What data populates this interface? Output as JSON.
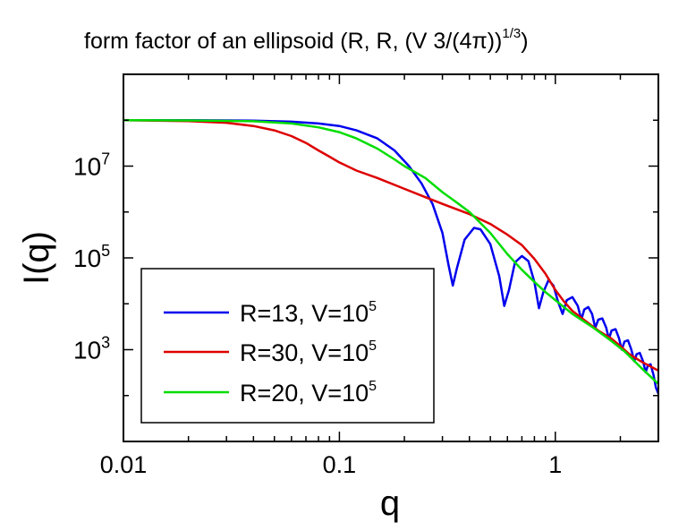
{
  "chart_data": {
    "type": "line",
    "title_main": "form factor of an ellipsoid (R, R, (V 3/(4π))",
    "title_sup": "1/3",
    "title_end": ")",
    "xlabel": "q",
    "ylabel": "I(q)",
    "xscale": "log",
    "yscale": "log",
    "xlim": [
      0.01,
      3
    ],
    "ylim": [
      10,
      1000000000
    ],
    "xticks": [
      {
        "value": 0.01,
        "label": "0.01"
      },
      {
        "value": 0.1,
        "label": "0.1"
      },
      {
        "value": 1,
        "label": "1"
      }
    ],
    "yticks": [
      {
        "value": 1000,
        "base": "10",
        "exp": "3"
      },
      {
        "value": 100000,
        "base": "10",
        "exp": "5"
      },
      {
        "value": 10000000,
        "base": "10",
        "exp": "7"
      }
    ],
    "grid": false,
    "legend_position": "bottom-left",
    "series": [
      {
        "name_main": "R=13, V=10",
        "name_sup": "5",
        "color": "#0000ee",
        "points": [
          [
            0.01,
            100000000
          ],
          [
            0.02,
            100000000
          ],
          [
            0.04,
            98000000
          ],
          [
            0.06,
            93000000
          ],
          [
            0.08,
            85000000
          ],
          [
            0.1,
            75000000
          ],
          [
            0.12,
            60000000
          ],
          [
            0.15,
            40000000
          ],
          [
            0.18,
            22000000
          ],
          [
            0.21,
            10000000
          ],
          [
            0.24,
            4200000
          ],
          [
            0.27,
            1500000
          ],
          [
            0.3,
            350000
          ],
          [
            0.32,
            70000
          ],
          [
            0.335,
            25000
          ],
          [
            0.35,
            60000
          ],
          [
            0.38,
            250000
          ],
          [
            0.42,
            450000
          ],
          [
            0.45,
            420000
          ],
          [
            0.5,
            200000
          ],
          [
            0.55,
            40000
          ],
          [
            0.58,
            9000
          ],
          [
            0.61,
            20000
          ],
          [
            0.65,
            80000
          ],
          [
            0.7,
            110000
          ],
          [
            0.75,
            85000
          ],
          [
            0.8,
            30000
          ],
          [
            0.84,
            8000
          ],
          [
            0.88,
            18000
          ],
          [
            0.93,
            33000
          ],
          [
            0.98,
            25000
          ],
          [
            1.03,
            11000
          ],
          [
            1.08,
            6000
          ],
          [
            1.13,
            12000
          ],
          [
            1.2,
            14000
          ],
          [
            1.27,
            9000
          ],
          [
            1.32,
            4500
          ],
          [
            1.36,
            7500
          ],
          [
            1.42,
            8500
          ],
          [
            1.48,
            6000
          ],
          [
            1.53,
            3000
          ],
          [
            1.58,
            4500
          ],
          [
            1.65,
            4800
          ],
          [
            1.72,
            3000
          ],
          [
            1.77,
            1700
          ],
          [
            1.82,
            2600
          ],
          [
            1.9,
            2800
          ],
          [
            1.97,
            1800
          ],
          [
            2.03,
            1000
          ],
          [
            2.09,
            1500
          ],
          [
            2.17,
            1600
          ],
          [
            2.25,
            1000
          ],
          [
            2.32,
            560
          ],
          [
            2.38,
            800
          ],
          [
            2.46,
            850
          ],
          [
            2.55,
            550
          ],
          [
            2.62,
            320
          ],
          [
            2.68,
            450
          ],
          [
            2.76,
            480
          ],
          [
            2.85,
            280
          ],
          [
            2.92,
            150
          ],
          [
            3,
            110
          ]
        ]
      },
      {
        "name_main": "R=30, V=10",
        "name_sup": "5",
        "color": "#dd0000",
        "points": [
          [
            0.01,
            100000000
          ],
          [
            0.02,
            96000000
          ],
          [
            0.03,
            88000000
          ],
          [
            0.04,
            75000000
          ],
          [
            0.05,
            60000000
          ],
          [
            0.06,
            45000000
          ],
          [
            0.07,
            32000000
          ],
          [
            0.08,
            22000000
          ],
          [
            0.09,
            16000000
          ],
          [
            0.1,
            12000000
          ],
          [
            0.12,
            8000000
          ],
          [
            0.15,
            5500000
          ],
          [
            0.2,
            3200000
          ],
          [
            0.25,
            2100000
          ],
          [
            0.3,
            1500000
          ],
          [
            0.4,
            900000
          ],
          [
            0.5,
            550000
          ],
          [
            0.6,
            320000
          ],
          [
            0.7,
            190000
          ],
          [
            0.8,
            95000
          ],
          [
            0.9,
            45000
          ],
          [
            1,
            20000
          ],
          [
            1.1,
            11000
          ],
          [
            1.2,
            7000
          ],
          [
            1.4,
            4000
          ],
          [
            1.6,
            2500
          ],
          [
            1.8,
            1800
          ],
          [
            2,
            1200
          ],
          [
            2.2,
            800
          ],
          [
            2.5,
            550
          ],
          [
            3,
            350
          ]
        ]
      },
      {
        "name_main": "R=20, V=10",
        "name_sup": "5",
        "color": "#00dd00",
        "points": [
          [
            0.01,
            100000000
          ],
          [
            0.02,
            99000000
          ],
          [
            0.04,
            95000000
          ],
          [
            0.06,
            85000000
          ],
          [
            0.08,
            70000000
          ],
          [
            0.1,
            55000000
          ],
          [
            0.12,
            40000000
          ],
          [
            0.15,
            24000000
          ],
          [
            0.18,
            14000000
          ],
          [
            0.2,
            10000000
          ],
          [
            0.25,
            5500000
          ],
          [
            0.3,
            2700000
          ],
          [
            0.35,
            1600000
          ],
          [
            0.4,
            1000000
          ],
          [
            0.5,
            350000
          ],
          [
            0.6,
            120000
          ],
          [
            0.7,
            55000
          ],
          [
            0.8,
            30000
          ],
          [
            0.9,
            18000
          ],
          [
            1,
            12000
          ],
          [
            1.2,
            6000
          ],
          [
            1.5,
            3000
          ],
          [
            1.8,
            1600
          ],
          [
            2.1,
            900
          ],
          [
            2.5,
            400
          ],
          [
            3,
            180
          ]
        ]
      }
    ]
  }
}
